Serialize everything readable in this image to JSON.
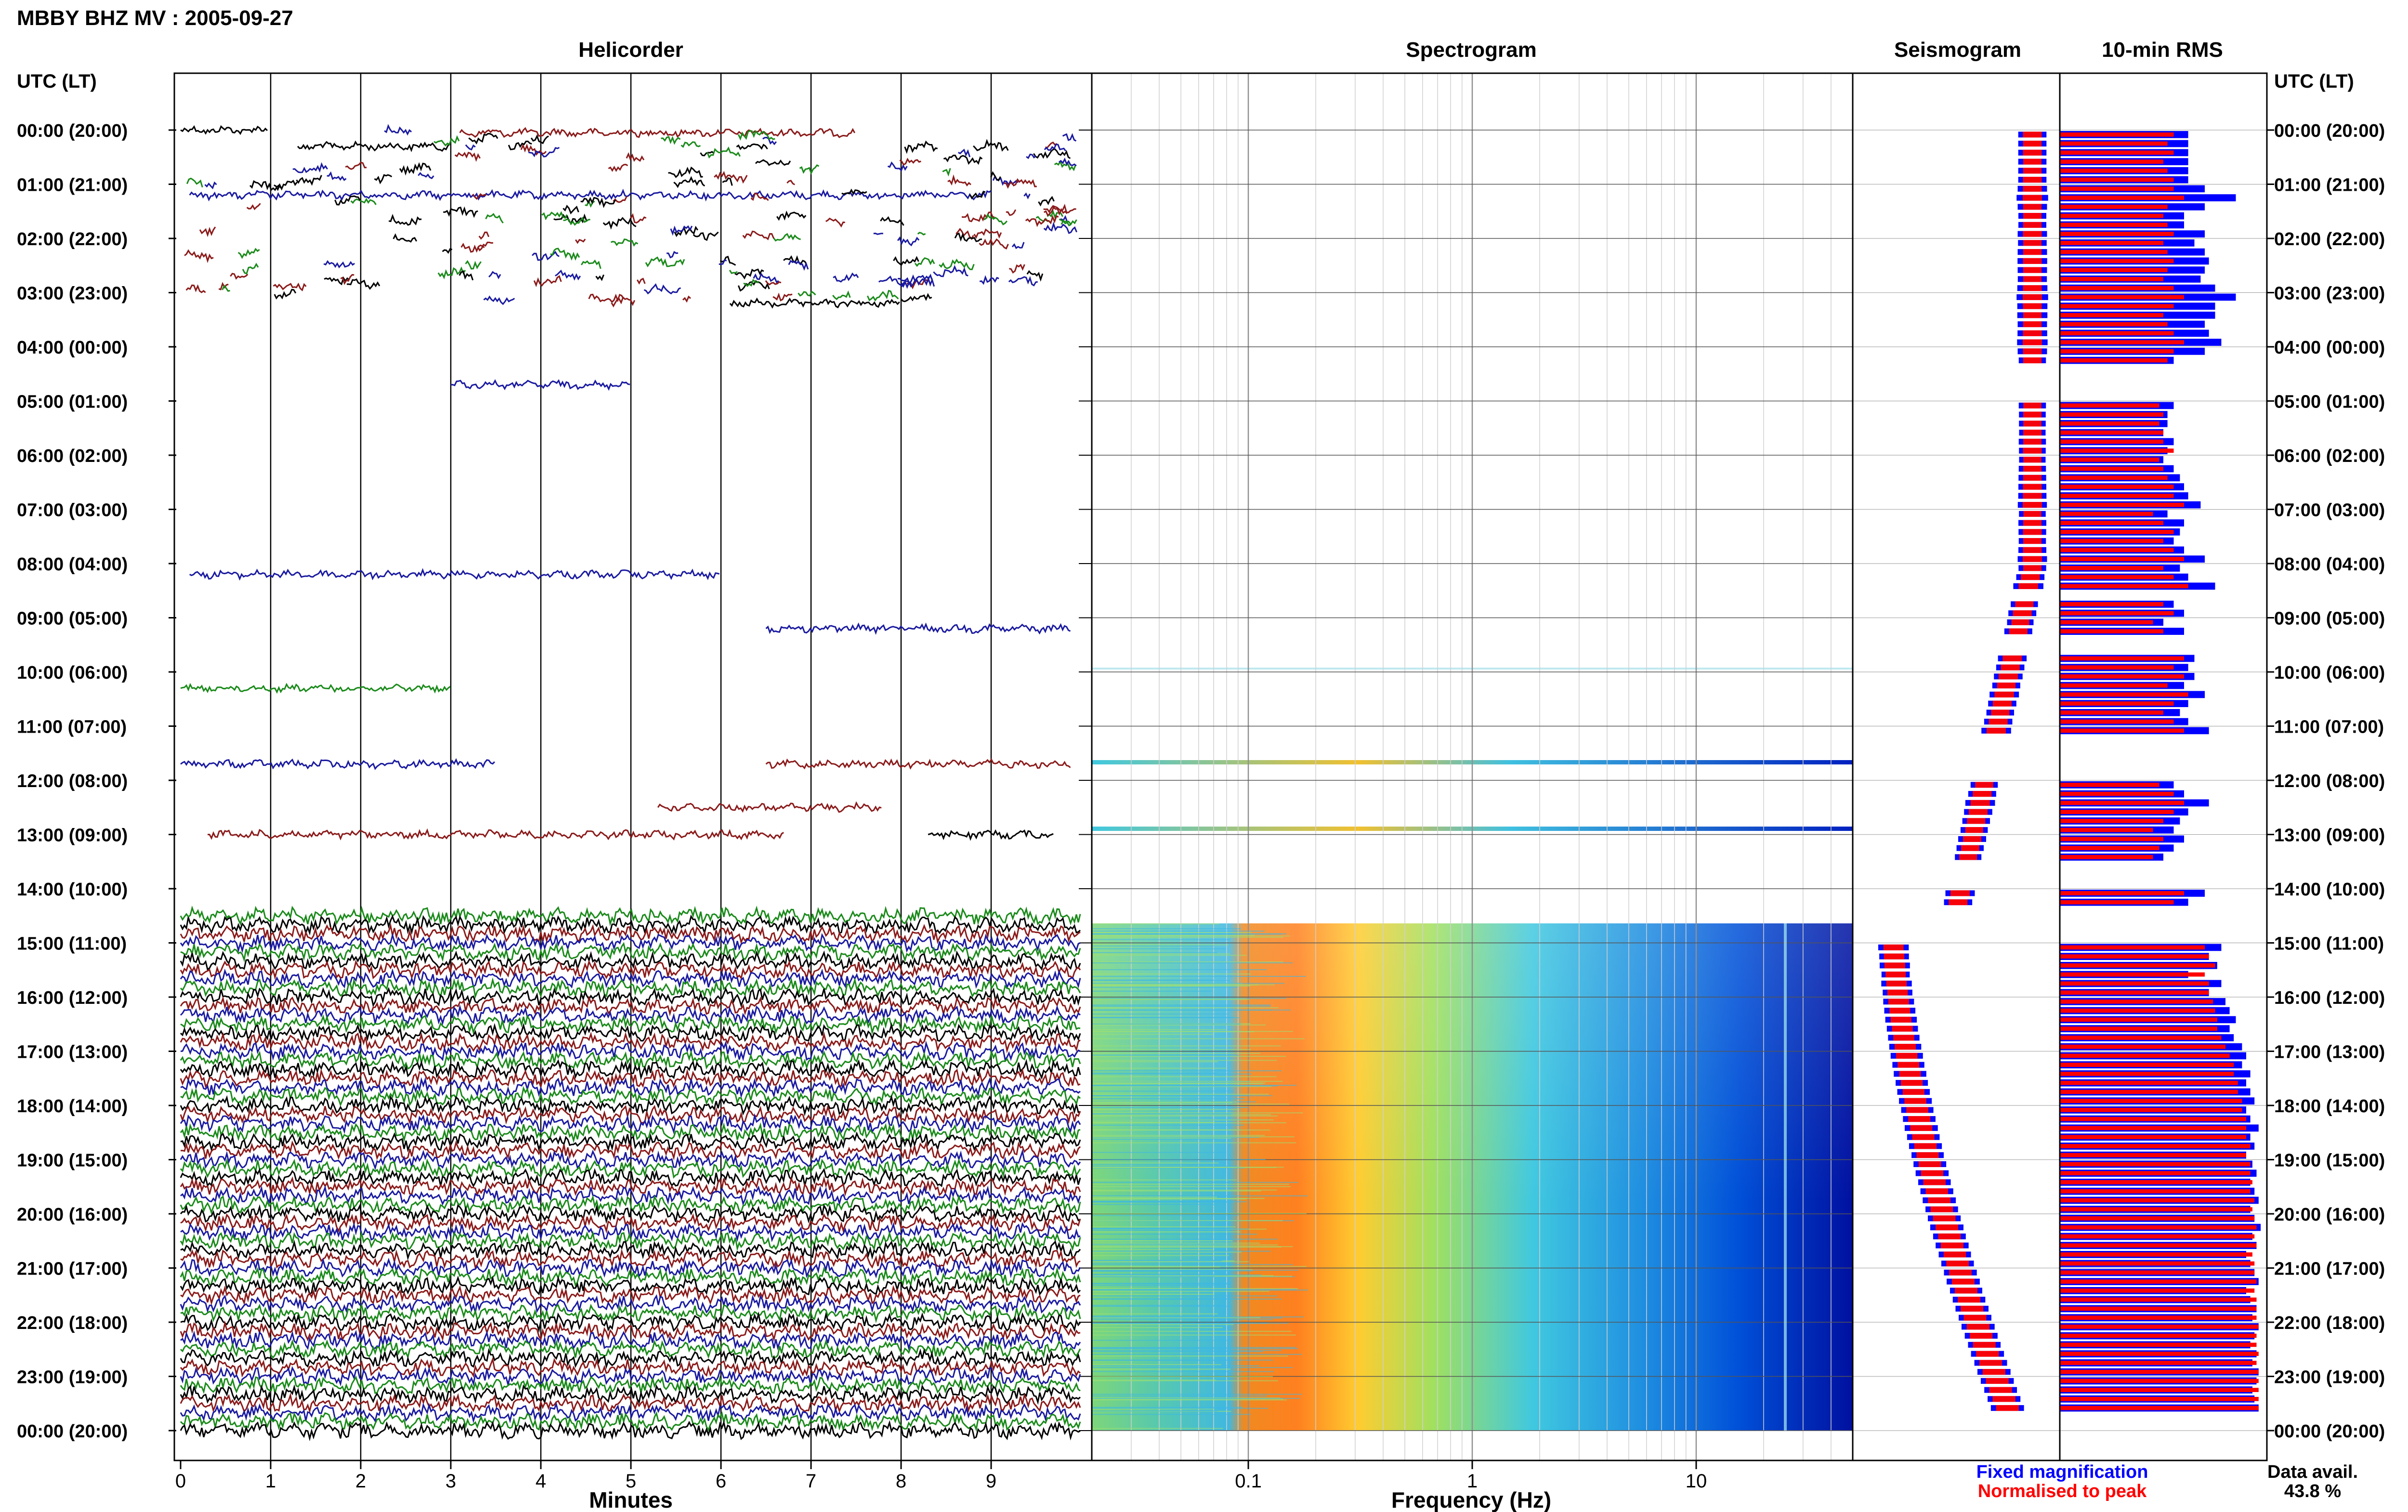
{
  "page": {
    "title": "MBBY BHZ MV : 2005-09-27",
    "time_header": "UTC (LT)",
    "data_avail_label": "Data avail.",
    "data_avail_value": "43.8 %"
  },
  "panels": {
    "helicorder": "Helicorder",
    "spectrogram": "Spectrogram",
    "seismogram": "Seismogram",
    "rms": "10-min RMS"
  },
  "axes": {
    "minutes_label": "Minutes",
    "frequency_label": "Frequency (Hz)",
    "minute_ticks": [
      "0",
      "1",
      "2",
      "3",
      "4",
      "5",
      "6",
      "7",
      "8",
      "9"
    ],
    "frequency_ticks": [
      "0.1",
      "1",
      "10"
    ]
  },
  "legend": {
    "fixed": "Fixed magnification",
    "normalised": "Normalised to peak"
  },
  "colors": {
    "trace_black": "#000000",
    "trace_red": "#8b1a1a",
    "trace_blue": "#1a1aa0",
    "trace_green": "#1a8a1a",
    "rms_fixed": "#0000ff",
    "rms_normalised": "#ff0000"
  },
  "chart_data": {
    "type": "heatmap",
    "title": "MBBY BHZ MV : 2005-09-27",
    "hour_labels": [
      "00:00 (20:00)",
      "01:00 (21:00)",
      "02:00 (22:00)",
      "03:00 (23:00)",
      "04:00 (00:00)",
      "05:00 (01:00)",
      "06:00 (02:00)",
      "07:00 (03:00)",
      "08:00 (04:00)",
      "09:00 (05:00)",
      "10:00 (06:00)",
      "11:00 (07:00)",
      "12:00 (08:00)",
      "13:00 (09:00)",
      "14:00 (10:00)",
      "15:00 (11:00)",
      "16:00 (12:00)",
      "17:00 (13:00)",
      "18:00 (14:00)",
      "19:00 (15:00)",
      "20:00 (16:00)",
      "21:00 (17:00)",
      "22:00 (18:00)",
      "23:00 (19:00)",
      "00:00 (20:00)"
    ],
    "rows_per_hour": 6,
    "continuous_from_hour": 14.6,
    "gapped_segments": [
      [
        0,
        0,
        0.97,
        0
      ],
      [
        0.3,
        1.3,
        3,
        0
      ],
      [
        0.05,
        3.1,
        7.5,
        1
      ],
      [
        1.2,
        0.1,
        9,
        2
      ],
      [
        3.2,
        6.1,
        8,
        0
      ],
      [
        4.7,
        3,
        5,
        2
      ],
      [
        8.2,
        0.1,
        6,
        2
      ],
      [
        9.2,
        6.5,
        9.9,
        2
      ],
      [
        10.3,
        0,
        3,
        3
      ],
      [
        11.7,
        0,
        3.5,
        2
      ],
      [
        11.7,
        6.5,
        9.9,
        1
      ],
      [
        12.5,
        5.3,
        7.8,
        1
      ],
      [
        13,
        0.3,
        6.7,
        1
      ],
      [
        13,
        8.3,
        9.7,
        0
      ]
    ],
    "rms_fixed_left": [
      0.62,
      0.62,
      0.62,
      0.62,
      0.62,
      0.62,
      0.7,
      0.85,
      0.7,
      0.6,
      0.6,
      0.7,
      0.65,
      0.7,
      0.72,
      0.7,
      0.68,
      0.75,
      0.85,
      0.75,
      0.75,
      0.7,
      0.72,
      0.78,
      0.7,
      0.55,
      0,
      0,
      0,
      0,
      0.55,
      0.52,
      0.52,
      0.5,
      0.55,
      0.52,
      0.5,
      0.55,
      0.58,
      0.6,
      0.62,
      0.68,
      0.52,
      0.6,
      0.58,
      0.55,
      0.6,
      0.7,
      0.58,
      0.62,
      0.75,
      0.0,
      0.55,
      0.6,
      0.5,
      0.6,
      0.0,
      0.0,
      0.65,
      0.62,
      0.65,
      0.6,
      0.7,
      0.62,
      0.58,
      0.62,
      0.72,
      0.0,
      0.0,
      0.0,
      0.0,
      0.0,
      0.55,
      0.6,
      0.72,
      0.62,
      0.58,
      0.55,
      0.6,
      0.55,
      0.5,
      0.0,
      0.0,
      0.0,
      0.7,
      0.62,
      0.0,
      0.0,
      0.0,
      0.0,
      0.78,
      0.72,
      0.76,
      0.62,
      0.78,
      0.72,
      0.8,
      0.82,
      0.85,
      0.82,
      0.84,
      0.88,
      0.9,
      0.88,
      0.92,
      0.9,
      0.92,
      0.94,
      0.9,
      0.92,
      0.96,
      0.92,
      0.94,
      0.9,
      0.93,
      0.95,
      0.92,
      0.94,
      0.96,
      0.92,
      0.94,
      0.97,
      0.93,
      0.95,
      0.9,
      0.92,
      0.94,
      0.96,
      0.9,
      0.92,
      0.95,
      0.93,
      0.96,
      0.94,
      0.92,
      0.95,
      0.93,
      0.96,
      0.95,
      0.93,
      0.94,
      0.96
    ],
    "rms_normalised_left": [
      0.55,
      0.52,
      0.55,
      0.5,
      0.52,
      0.55,
      0.55,
      0.6,
      0.52,
      0.5,
      0.52,
      0.55,
      0.5,
      0.52,
      0.55,
      0.52,
      0.5,
      0.55,
      0.6,
      0.55,
      0.5,
      0.52,
      0.55,
      0.6,
      0.55,
      0.52,
      0,
      0,
      0,
      0,
      0.48,
      0.5,
      0.48,
      0.5,
      0.5,
      0.55,
      0.48,
      0.5,
      0.52,
      0.55,
      0.55,
      0.6,
      0.45,
      0.5,
      0.55,
      0.5,
      0.55,
      0.6,
      0.5,
      0.55,
      0.62,
      0.0,
      0.5,
      0.55,
      0.45,
      0.5,
      0.0,
      0.0,
      0.6,
      0.55,
      0.6,
      0.52,
      0.62,
      0.55,
      0.5,
      0.55,
      0.6,
      0.0,
      0.0,
      0.0,
      0.0,
      0.0,
      0.48,
      0.55,
      0.6,
      0.55,
      0.5,
      0.45,
      0.5,
      0.48,
      0.45,
      0.0,
      0.0,
      0.0,
      0.6,
      0.55,
      0.0,
      0.0,
      0.0,
      0.0,
      0.7,
      0.72,
      0.75,
      0.7,
      0.72,
      0.72,
      0.74,
      0.75,
      0.76,
      0.76,
      0.78,
      0.8,
      0.82,
      0.84,
      0.84,
      0.86,
      0.86,
      0.88,
      0.88,
      0.9,
      0.9,
      0.9,
      0.92,
      0.9,
      0.92,
      0.92,
      0.93,
      0.92,
      0.94,
      0.93,
      0.94,
      0.95,
      0.94,
      0.95,
      0.93,
      0.94,
      0.94,
      0.95,
      0.94,
      0.95,
      0.95,
      0.95,
      0.96,
      0.95,
      0.95,
      0.96,
      0.95,
      0.96,
      0.96,
      0.96,
      0.96,
      0.96
    ],
    "xlabel": "Minutes",
    "x_ticks": [
      0,
      1,
      2,
      3,
      4,
      5,
      6,
      7,
      8,
      9
    ],
    "frequency_axis": {
      "label": "Frequency (Hz)",
      "scale": "log",
      "ticks": [
        0.1,
        1,
        10
      ],
      "range": [
        0.02,
        50
      ]
    }
  }
}
